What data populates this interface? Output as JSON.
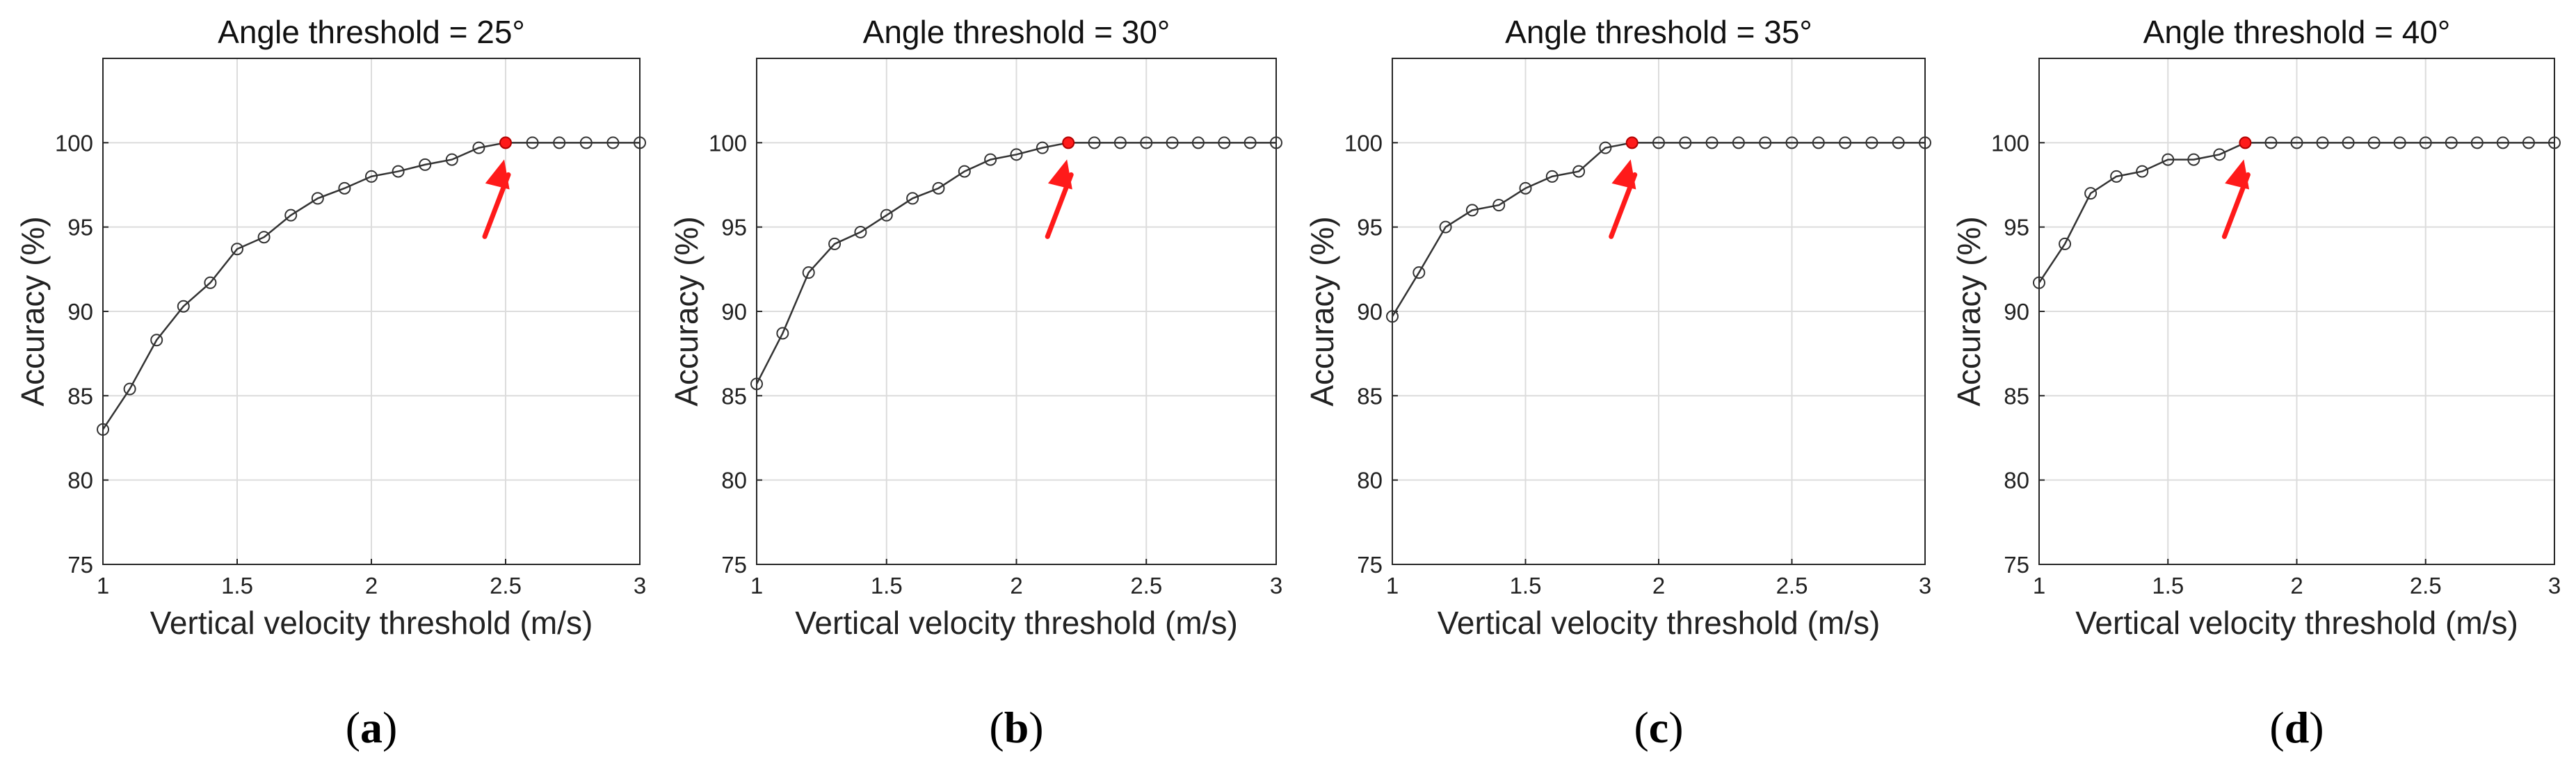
{
  "chart_data": [
    {
      "type": "line",
      "panel_label": "a",
      "title": "Angle threshold = 25°",
      "xlabel": "Vertical velocity threshold (m/s)",
      "ylabel": "Accuracy (%)",
      "xlim": [
        1,
        3
      ],
      "ylim": [
        75,
        105
      ],
      "xticks": [
        1,
        1.5,
        2,
        2.5,
        3
      ],
      "xtick_labels": [
        "1",
        "1.5",
        "2",
        "2.5",
        "3"
      ],
      "yticks": [
        75,
        80,
        85,
        90,
        95,
        100
      ],
      "ytick_labels": [
        "75",
        "80",
        "85",
        "90",
        "95",
        "100"
      ],
      "grid": true,
      "x": [
        1.0,
        1.1,
        1.2,
        1.3,
        1.4,
        1.5,
        1.6,
        1.7,
        1.8,
        1.9,
        2.0,
        2.1,
        2.2,
        2.3,
        2.4,
        2.5,
        2.6,
        2.7,
        2.8,
        2.9,
        3.0
      ],
      "y": [
        83.0,
        85.4,
        88.3,
        90.3,
        91.7,
        93.7,
        94.4,
        95.7,
        96.7,
        97.3,
        98.0,
        98.3,
        98.7,
        99.0,
        99.7,
        100,
        100,
        100,
        100,
        100,
        100
      ],
      "highlight_x": 2.5,
      "highlight_color": "#ff1a1a",
      "line_color": "#333333"
    },
    {
      "type": "line",
      "panel_label": "b",
      "title": "Angle threshold = 30°",
      "xlabel": "Vertical velocity threshold (m/s)",
      "ylabel": "Accuracy (%)",
      "xlim": [
        1,
        3
      ],
      "ylim": [
        75,
        105
      ],
      "xticks": [
        1,
        1.5,
        2,
        2.5,
        3
      ],
      "xtick_labels": [
        "1",
        "1.5",
        "2",
        "2.5",
        "3"
      ],
      "yticks": [
        75,
        80,
        85,
        90,
        95,
        100
      ],
      "ytick_labels": [
        "75",
        "80",
        "85",
        "90",
        "95",
        "100"
      ],
      "grid": true,
      "x": [
        1.0,
        1.1,
        1.2,
        1.3,
        1.4,
        1.5,
        1.6,
        1.7,
        1.8,
        1.9,
        2.0,
        2.1,
        2.2,
        2.3,
        2.4,
        2.5,
        2.6,
        2.7,
        2.8,
        2.9,
        3.0
      ],
      "y": [
        85.7,
        88.7,
        92.3,
        94.0,
        94.7,
        95.7,
        96.7,
        97.3,
        98.3,
        99.0,
        99.3,
        99.7,
        100,
        100,
        100,
        100,
        100,
        100,
        100,
        100,
        100
      ],
      "highlight_x": 2.2,
      "highlight_color": "#ff1a1a",
      "line_color": "#333333"
    },
    {
      "type": "line",
      "panel_label": "c",
      "title": "Angle threshold = 35°",
      "xlabel": "Vertical velocity threshold (m/s)",
      "ylabel": "Accuracy (%)",
      "xlim": [
        1,
        3
      ],
      "ylim": [
        75,
        105
      ],
      "xticks": [
        1,
        1.5,
        2,
        2.5,
        3
      ],
      "xtick_labels": [
        "1",
        "1.5",
        "2",
        "2.5",
        "3"
      ],
      "yticks": [
        75,
        80,
        85,
        90,
        95,
        100
      ],
      "ytick_labels": [
        "75",
        "80",
        "85",
        "90",
        "95",
        "100"
      ],
      "grid": true,
      "x": [
        1.0,
        1.1,
        1.2,
        1.3,
        1.4,
        1.5,
        1.6,
        1.7,
        1.8,
        1.9,
        2.0,
        2.1,
        2.2,
        2.3,
        2.4,
        2.5,
        2.6,
        2.7,
        2.8,
        2.9,
        3.0
      ],
      "y": [
        89.7,
        92.3,
        95.0,
        96.0,
        96.3,
        97.3,
        98.0,
        98.3,
        99.7,
        100,
        100,
        100,
        100,
        100,
        100,
        100,
        100,
        100,
        100,
        100,
        100
      ],
      "highlight_x": 1.9,
      "highlight_color": "#ff1a1a",
      "line_color": "#333333"
    },
    {
      "type": "line",
      "panel_label": "d",
      "title": "Angle threshold = 40°",
      "xlabel": "Vertical velocity threshold (m/s)",
      "ylabel": "Accuracy (%)",
      "xlim": [
        1,
        3
      ],
      "ylim": [
        75,
        105
      ],
      "xticks": [
        1,
        1.5,
        2,
        2.5,
        3
      ],
      "xtick_labels": [
        "1",
        "1.5",
        "2",
        "2.5",
        "3"
      ],
      "yticks": [
        75,
        80,
        85,
        90,
        95,
        100
      ],
      "ytick_labels": [
        "75",
        "80",
        "85",
        "90",
        "95",
        "100"
      ],
      "grid": true,
      "x": [
        1.0,
        1.1,
        1.2,
        1.3,
        1.4,
        1.5,
        1.6,
        1.7,
        1.8,
        1.9,
        2.0,
        2.1,
        2.2,
        2.3,
        2.4,
        2.5,
        2.6,
        2.7,
        2.8,
        2.9,
        3.0
      ],
      "y": [
        91.7,
        94.0,
        97.0,
        98.0,
        98.3,
        99.0,
        99.0,
        99.3,
        100,
        100,
        100,
        100,
        100,
        100,
        100,
        100,
        100,
        100,
        100,
        100,
        100
      ],
      "highlight_x": 1.8,
      "highlight_color": "#ff1a1a",
      "line_color": "#333333"
    }
  ]
}
